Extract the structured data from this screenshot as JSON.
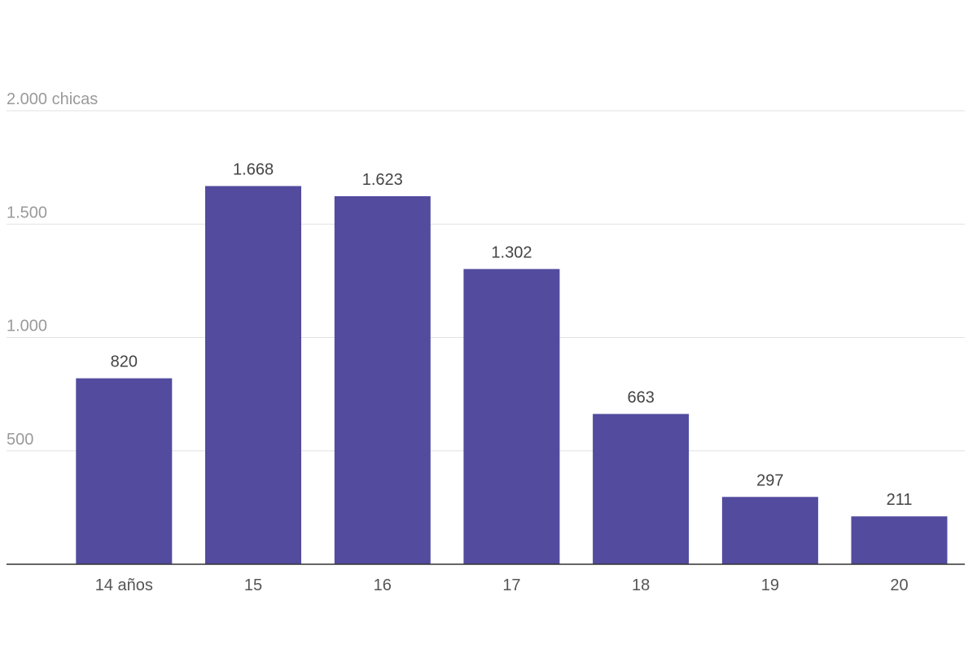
{
  "chart_data": {
    "type": "bar",
    "title": "",
    "xlabel": "",
    "ylabel": "",
    "categories": [
      "14 años",
      "15",
      "16",
      "17",
      "18",
      "19",
      "20"
    ],
    "values": [
      820,
      1668,
      1623,
      1302,
      663,
      297,
      211
    ],
    "value_labels": [
      "820",
      "1.668",
      "1.623",
      "1.302",
      "663",
      "297",
      "211"
    ],
    "ylim": [
      0,
      2000
    ],
    "yticks": [
      {
        "value": 500,
        "label": "500"
      },
      {
        "value": 1000,
        "label": "1.000"
      },
      {
        "value": 1500,
        "label": "1.500"
      },
      {
        "value": 2000,
        "label": "2.000 chicas"
      }
    ],
    "grid": true,
    "bar_color": "#524b9e"
  }
}
